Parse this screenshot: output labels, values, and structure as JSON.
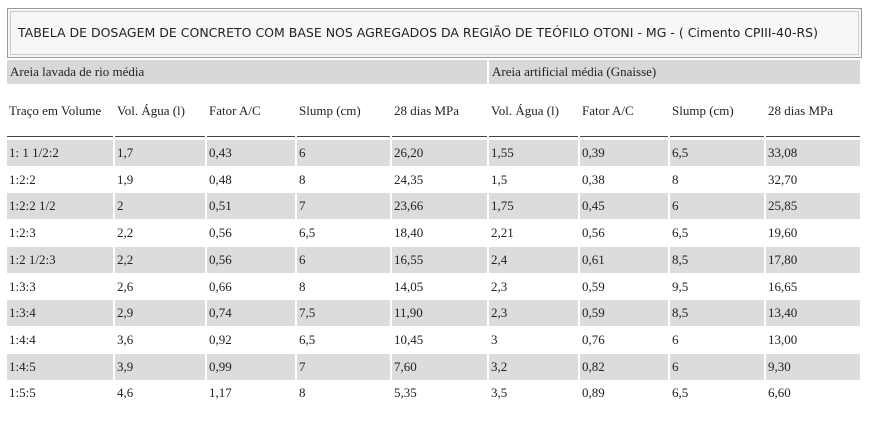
{
  "title": "TABELA DE DOSAGEM DE CONCRETO COM BASE NOS AGREGADOS DA REGIÃO DE TEÓFILO OTONI - MG - ( Cimento CPIII-40-RS)",
  "groups": [
    "Areia lavada de rio média",
    "Areia artificial média (Gnaisse)"
  ],
  "header": [
    "Traço em Volume",
    "Vol. Água (l)",
    "Fator A/C",
    "Slump (cm)",
    "28 dias MPa",
    "Vol. Água (l)",
    "Fator A/C",
    "Slump (cm)",
    "28 dias MPa"
  ],
  "rows": [
    [
      "1: 1 1/2:2",
      "1,7",
      "0,43",
      "6",
      "26,20",
      "1,55",
      "0,39",
      "6,5",
      "33,08"
    ],
    [
      "1:2:2",
      "1,9",
      "0,48",
      "8",
      "24,35",
      "1,5",
      "0,38",
      "8",
      "32,70"
    ],
    [
      "1:2:2 1/2",
      "2",
      "0,51",
      "7",
      "23,66",
      "1,75",
      "0,45",
      "6",
      "25,85"
    ],
    [
      "1:2:3",
      "2,2",
      "0,56",
      "6,5",
      "18,40",
      "2,21",
      "0,56",
      "6,5",
      "19,60"
    ],
    [
      "1:2 1/2:3",
      "2,2",
      "0,56",
      "6",
      "16,55",
      "2,4",
      "0,61",
      "8,5",
      "17,80"
    ],
    [
      "1:3:3",
      "2,6",
      "0,66",
      "8",
      "14,05",
      "2,3",
      "0,59",
      "9,5",
      "16,65"
    ],
    [
      "1:3:4",
      "2,9",
      "0,74",
      "7,5",
      "11,90",
      "2,3",
      "0,59",
      "8,5",
      "13,40"
    ],
    [
      "1:4:4",
      "3,6",
      "0,92",
      "6,5",
      "10,45",
      "3",
      "0,76",
      "6",
      "13,00"
    ],
    [
      "1:4:5",
      "3,9",
      "0,99",
      "7",
      "7,60",
      "3,2",
      "0,82",
      "6",
      "9,30"
    ],
    [
      "1:5:5",
      "4,6",
      "1,17",
      "8",
      "5,35",
      "3,5",
      "0,89",
      "6,5",
      "6,60"
    ]
  ]
}
